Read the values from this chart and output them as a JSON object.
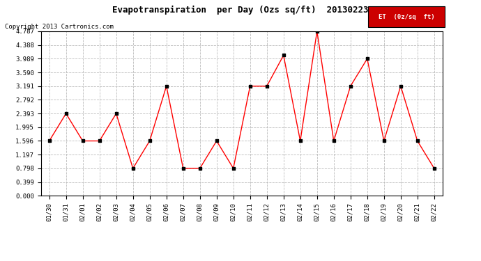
{
  "title": "Evapotranspiration  per Day (Ozs sq/ft)  20130223",
  "copyright": "Copyright 2013 Cartronics.com",
  "legend_label": "ET  (0z/sq  ft)",
  "dates": [
    "01/30",
    "01/31",
    "02/01",
    "02/02",
    "02/03",
    "02/04",
    "02/05",
    "02/06",
    "02/07",
    "02/08",
    "02/09",
    "02/10",
    "02/11",
    "02/12",
    "02/13",
    "02/14",
    "02/15",
    "02/16",
    "02/17",
    "02/18",
    "02/19",
    "02/20",
    "02/21",
    "02/22"
  ],
  "values": [
    1.596,
    2.393,
    1.596,
    1.596,
    2.393,
    0.798,
    1.596,
    3.191,
    0.798,
    0.798,
    1.596,
    0.798,
    3.191,
    3.191,
    4.089,
    1.596,
    4.787,
    1.596,
    3.191,
    3.989,
    1.596,
    3.191,
    1.596,
    0.798
  ],
  "yticks": [
    0.0,
    0.399,
    0.798,
    1.197,
    1.596,
    1.995,
    2.393,
    2.792,
    3.191,
    3.59,
    3.989,
    4.388,
    4.787
  ],
  "line_color": "red",
  "marker_color": "black",
  "grid_color": "#bbbbbb",
  "background_color": "#ffffff",
  "title_fontsize": 9,
  "copyright_fontsize": 6.5,
  "tick_fontsize": 6.5,
  "legend_bg": "#cc0000",
  "legend_text_color": "#ffffff"
}
